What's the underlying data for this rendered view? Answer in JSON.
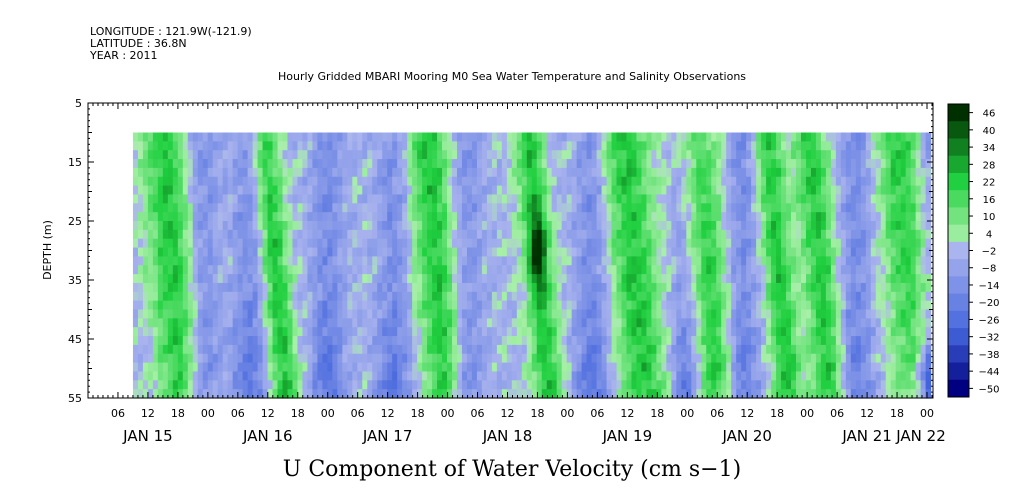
{
  "header": {
    "longitude": "LONGITUDE : 121.9W(-121.9)",
    "latitude": "LATITUDE : 36.8N",
    "year": "YEAR : 2011"
  },
  "chart_data": {
    "type": "heatmap",
    "title": "Hourly Gridded MBARI Mooring M0 Sea Water Temperature and Salinity Observations",
    "variable_title": "U Component of Water Velocity (cm s−1)",
    "ylabel": "DEPTH (m)",
    "xlabel": "",
    "ylim": [
      55,
      5
    ],
    "y_inverted": true,
    "y_ticks": [
      "5",
      "15",
      "25",
      "35",
      "45",
      "55"
    ],
    "data_depth_range_m": [
      10,
      55
    ],
    "x_hour_ticks": [
      "06",
      "12",
      "18",
      "00",
      "06",
      "12",
      "18",
      "00",
      "06",
      "12",
      "18",
      "00",
      "06",
      "12",
      "18",
      "00",
      "06",
      "12",
      "18",
      "00",
      "06",
      "12",
      "18",
      "00",
      "06",
      "12",
      "18",
      "00",
      "06",
      "12",
      "18",
      "00"
    ],
    "x_day_labels": [
      "JAN 15",
      "JAN 16",
      "JAN 17",
      "JAN 18",
      "JAN 19",
      "JAN 20",
      "JAN 21",
      "JAN 22"
    ],
    "x_range_days": [
      0,
      7.05
    ],
    "data_start_day": 0.375,
    "colorbar": {
      "labels": [
        "46",
        "40",
        "34",
        "28",
        "22",
        "16",
        "10",
        "4",
        "−2",
        "−8",
        "−14",
        "−20",
        "−26",
        "−32",
        "−38",
        "−44",
        "−50"
      ],
      "range": [
        -50,
        46
      ]
    },
    "pattern": {
      "note_source": "values estimated from colors",
      "positive_phase_centers_day": [
        0.7,
        1.55,
        2.9,
        3.75,
        4.55,
        5.15,
        5.75,
        6.1,
        6.85
      ],
      "negative_phase_centers_day": [
        0.95,
        1.35,
        2.0,
        2.55,
        3.15,
        4.2,
        5.0,
        5.45,
        6.4,
        7.0
      ],
      "maximum": {
        "day": 3.75,
        "depth_m": 30,
        "value": 46
      },
      "minimum": {
        "day": 7.02,
        "depth_m": 52,
        "value": -38
      }
    },
    "colors": {
      "neg_max": "#000080",
      "neg_mid": "#4466dd",
      "neg_low": "#aab4ee",
      "pos_low": "#a8f0a8",
      "pos_mid": "#20d040",
      "pos_max": "#003000",
      "missing": "#ffffff"
    }
  }
}
